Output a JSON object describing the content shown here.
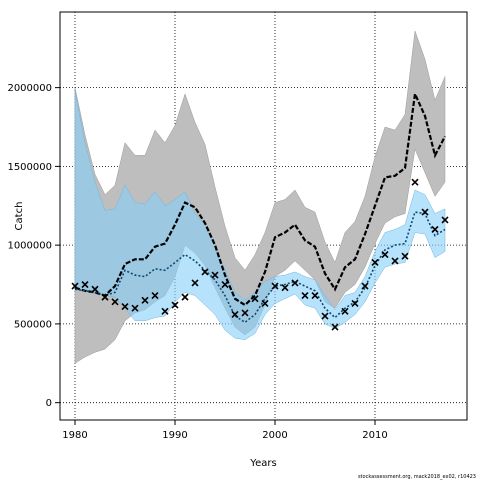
{
  "chart_data": {
    "type": "line",
    "title": "",
    "xlabel": "Years",
    "ylabel": "Catch",
    "footnote": "stockassessment.org, mack2018_ex02, r10423",
    "xlim": [
      1978.5,
      2019.2
    ],
    "ylim": [
      -110000,
      2480000
    ],
    "x_ticks": [
      1980,
      1990,
      2000,
      2010
    ],
    "y_ticks": [
      0,
      500000,
      1000000,
      1500000,
      2000000
    ],
    "y_tick_labels": [
      "0",
      "500000",
      "1000000",
      "1500000",
      "2000000"
    ],
    "grid": true,
    "colors": {
      "grey_band": "#bebebe",
      "blue_band": "#87cefa",
      "overlap": "#a3c4d4",
      "black_line": "#000000",
      "blue_line": "#0a4a70",
      "observed": "#000000"
    },
    "years": [
      1980,
      1981,
      1982,
      1983,
      1984,
      1985,
      1986,
      1987,
      1988,
      1989,
      1990,
      1991,
      1992,
      1993,
      1994,
      1995,
      1996,
      1997,
      1998,
      1999,
      2000,
      2001,
      2002,
      2003,
      2004,
      2005,
      2006,
      2007,
      2008,
      2009,
      2010,
      2011,
      2012,
      2013,
      2014,
      2015,
      2016,
      2017
    ],
    "series": [
      {
        "name": "",
        "style": "black-dashed",
        "values": [
          730000,
          710000,
          700000,
          680000,
          740000,
          880000,
          910000,
          910000,
          990000,
          1010000,
          1130000,
          1270000,
          1240000,
          1140000,
          1000000,
          810000,
          660000,
          620000,
          680000,
          830000,
          1050000,
          1080000,
          1130000,
          1030000,
          990000,
          820000,
          720000,
          860000,
          910000,
          1070000,
          1250000,
          1430000,
          1440000,
          1490000,
          1960000,
          1820000,
          1570000,
          1690000
        ],
        "lower": [
          250000,
          290000,
          320000,
          340000,
          400000,
          520000,
          570000,
          590000,
          640000,
          680000,
          800000,
          1000000,
          950000,
          870000,
          730000,
          600000,
          480000,
          430000,
          480000,
          620000,
          800000,
          840000,
          900000,
          840000,
          780000,
          640000,
          600000,
          700000,
          750000,
          860000,
          1010000,
          1140000,
          1180000,
          1200000,
          1610000,
          1460000,
          1310000,
          1400000
        ],
        "upper": [
          2000000,
          1700000,
          1450000,
          1320000,
          1380000,
          1650000,
          1570000,
          1570000,
          1730000,
          1650000,
          1760000,
          1960000,
          1780000,
          1640000,
          1370000,
          1120000,
          920000,
          840000,
          940000,
          1080000,
          1270000,
          1290000,
          1350000,
          1240000,
          1210000,
          1020000,
          890000,
          1080000,
          1150000,
          1310000,
          1560000,
          1750000,
          1730000,
          1830000,
          2360000,
          2180000,
          1920000,
          2070000
        ]
      },
      {
        "name": "",
        "style": "blue-dotted",
        "values": [
          720000,
          710000,
          700000,
          680000,
          700000,
          840000,
          810000,
          800000,
          850000,
          840000,
          890000,
          940000,
          900000,
          840000,
          780000,
          680000,
          550000,
          510000,
          560000,
          660000,
          740000,
          750000,
          770000,
          740000,
          710000,
          600000,
          540000,
          600000,
          640000,
          730000,
          870000,
          970000,
          1000000,
          1010000,
          1210000,
          1200000,
          1060000,
          1100000
        ],
        "lower": [
          730000,
          715000,
          700000,
          680000,
          670000,
          600000,
          520000,
          520000,
          540000,
          550000,
          640000,
          700000,
          680000,
          620000,
          560000,
          460000,
          410000,
          400000,
          440000,
          560000,
          630000,
          660000,
          690000,
          620000,
          600000,
          500000,
          470000,
          510000,
          560000,
          640000,
          760000,
          860000,
          880000,
          890000,
          1080000,
          1070000,
          920000,
          960000
        ],
        "upper": [
          1980000,
          1650000,
          1400000,
          1220000,
          1230000,
          1380000,
          1270000,
          1260000,
          1340000,
          1250000,
          1290000,
          1340000,
          1200000,
          1130000,
          1000000,
          840000,
          700000,
          650000,
          700000,
          770000,
          800000,
          810000,
          830000,
          800000,
          780000,
          680000,
          590000,
          680000,
          700000,
          800000,
          960000,
          1080000,
          1100000,
          1130000,
          1350000,
          1320000,
          1200000,
          1230000
        ]
      }
    ],
    "observed": {
      "name": "",
      "marker": "x",
      "values": [
        740000,
        750000,
        720000,
        670000,
        640000,
        610000,
        600000,
        650000,
        680000,
        580000,
        620000,
        670000,
        760000,
        830000,
        810000,
        750000,
        560000,
        570000,
        660000,
        630000,
        740000,
        730000,
        760000,
        680000,
        680000,
        550000,
        480000,
        580000,
        630000,
        740000,
        890000,
        940000,
        900000,
        930000,
        1400000,
        1210000,
        1100000,
        1160000
      ]
    }
  }
}
